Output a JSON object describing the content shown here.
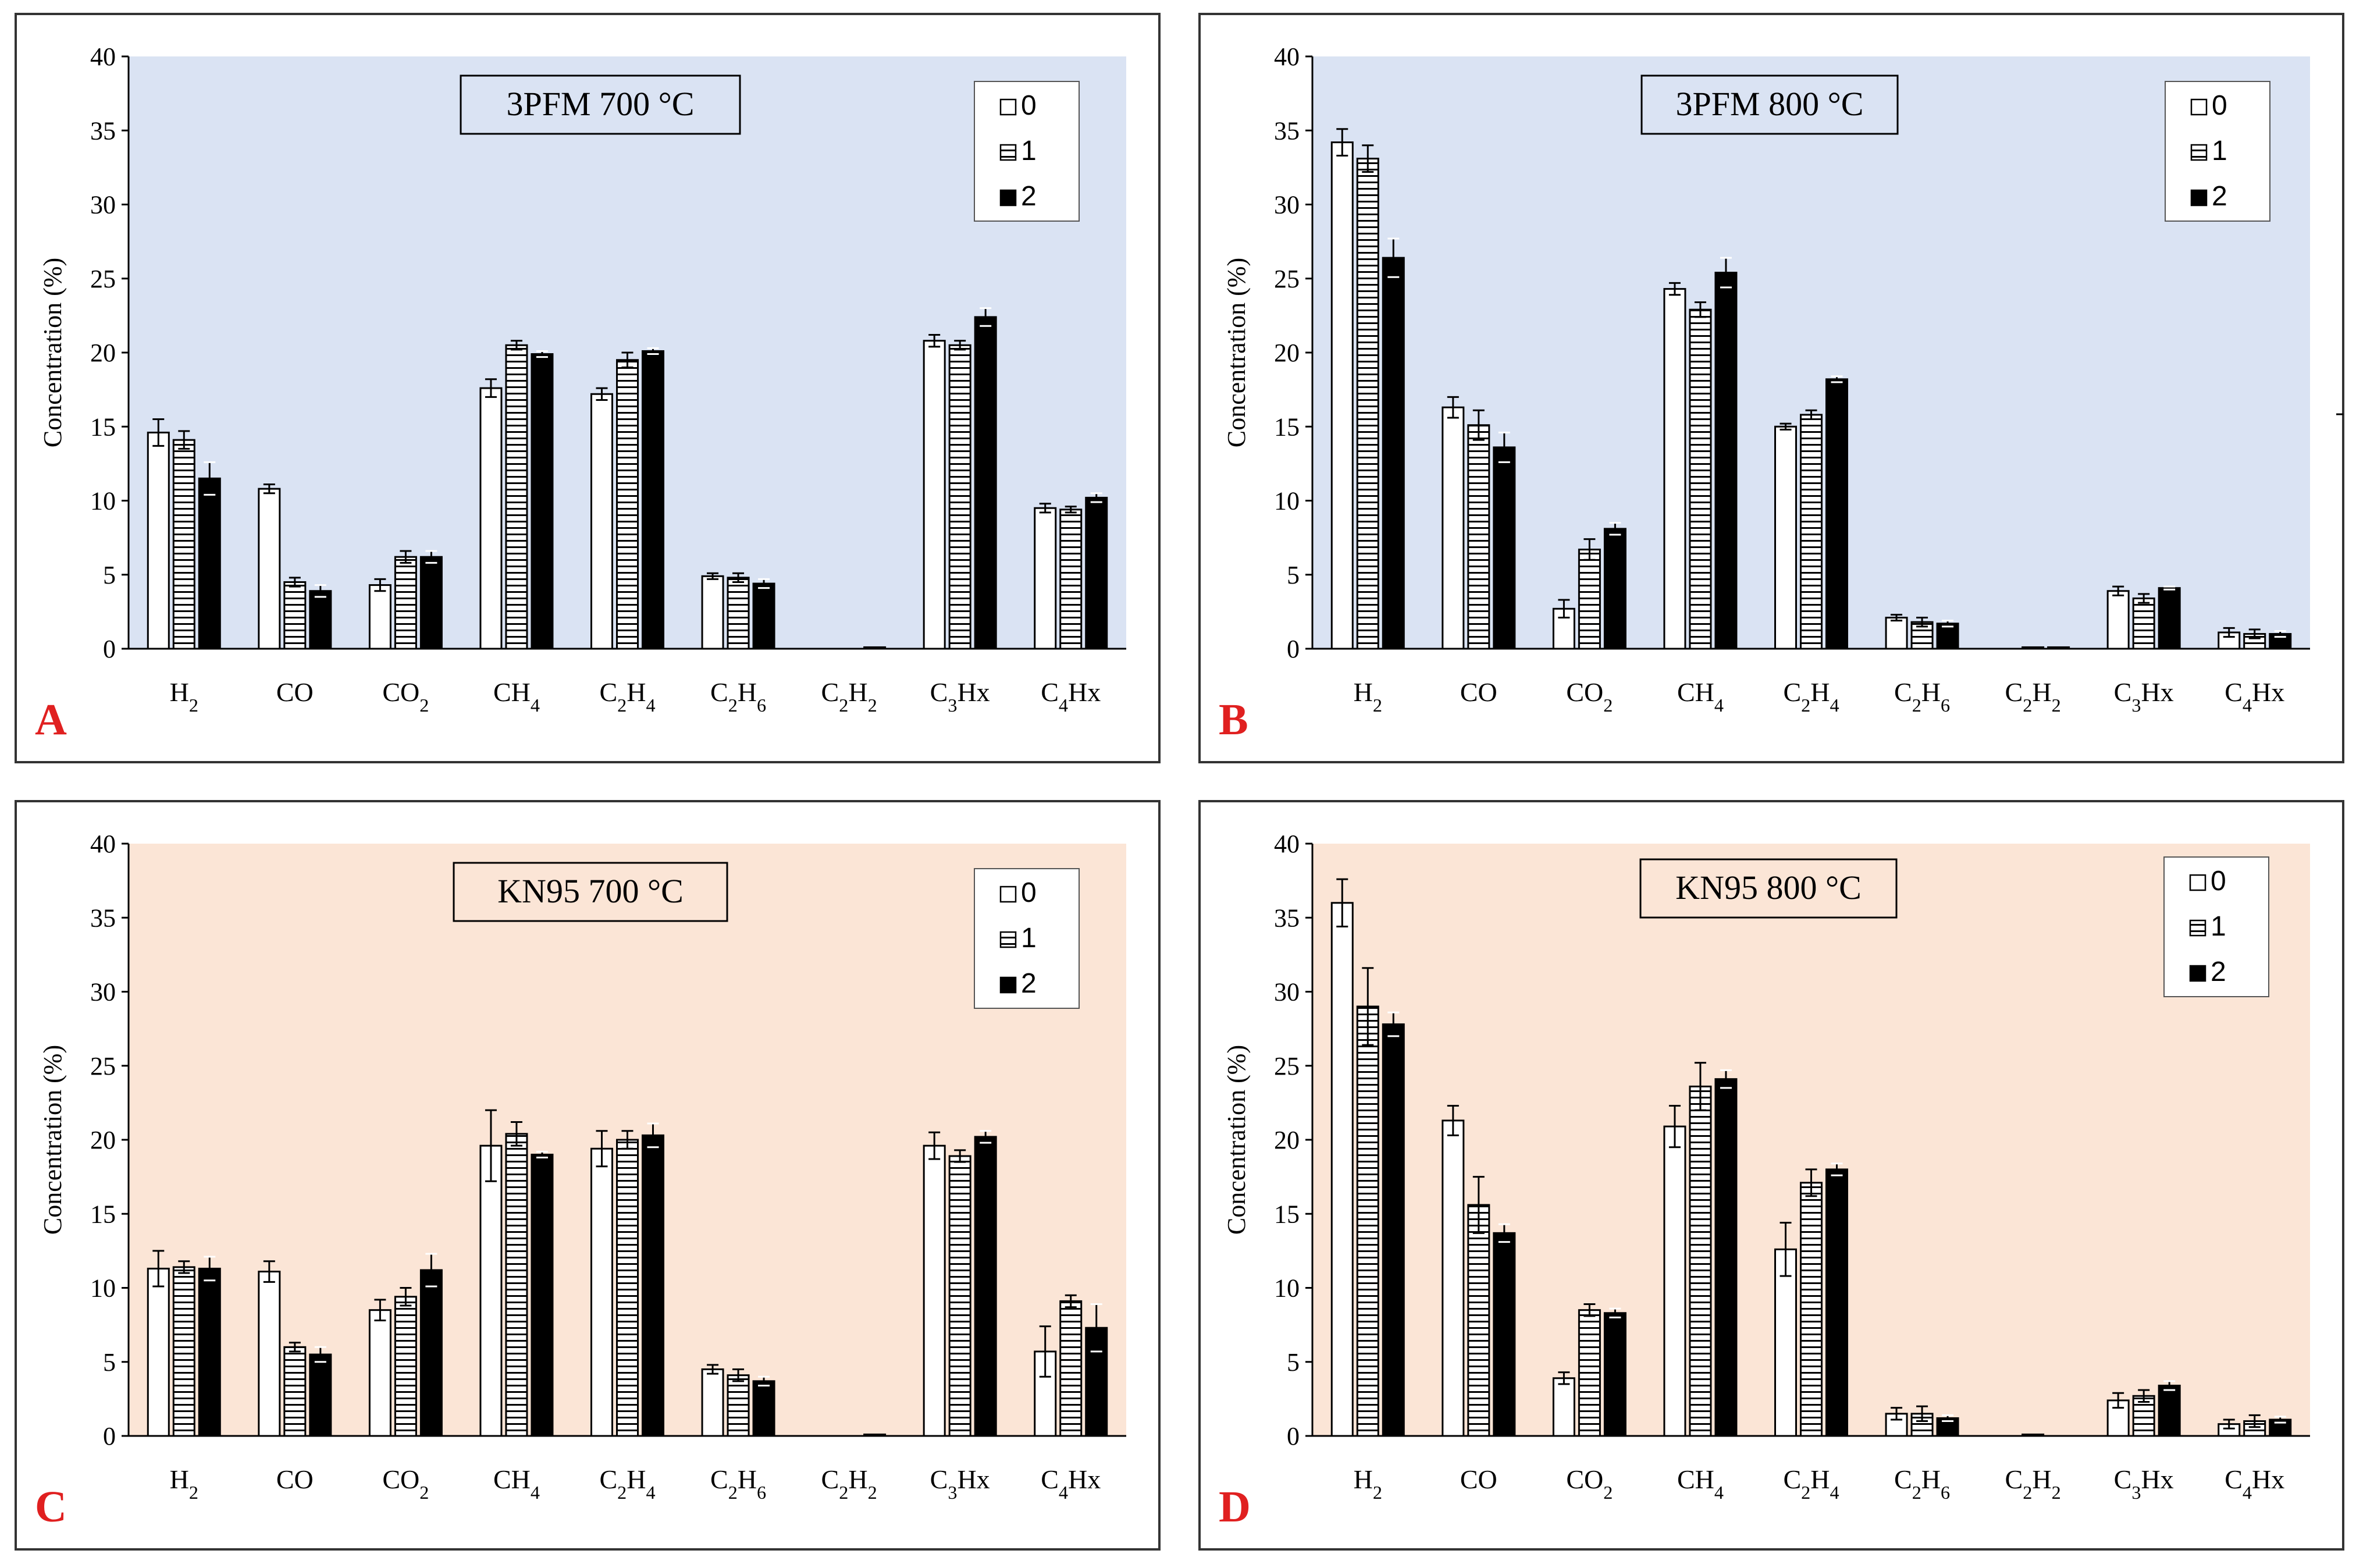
{
  "legend_labels": [
    "0",
    "1",
    "2"
  ],
  "colors": {
    "frame": "#333333",
    "plot_bg_top": "#dae3f3",
    "plot_bg_bottom": "#fbe5d6",
    "letter": "#e02020",
    "bar_fill_0": "#ffffff",
    "bar_fill_2": "#000000",
    "hatch": "#000000"
  },
  "chart_data": [
    {
      "panel_letter": "A",
      "type": "bar",
      "title": "3PFM  700 °C",
      "xlabel": "",
      "ylabel": "Concentration  (%)",
      "ylim": [
        0,
        40
      ],
      "yticks": [
        0,
        5,
        10,
        15,
        20,
        25,
        30,
        35,
        40
      ],
      "categories": [
        "H2",
        "CO",
        "CO2",
        "CH4",
        "C2H4",
        "C2H6",
        "C2H2",
        "C3Hx",
        "C4Hx"
      ],
      "series": [
        {
          "name": "0",
          "values": [
            14.6,
            10.8,
            4.3,
            17.6,
            17.2,
            4.9,
            0,
            20.8,
            9.5
          ],
          "errors": [
            0.9,
            0.3,
            0.4,
            0.6,
            0.4,
            0.2,
            0,
            0.4,
            0.3
          ]
        },
        {
          "name": "1",
          "values": [
            14.1,
            4.5,
            6.2,
            20.5,
            19.5,
            4.8,
            0,
            20.5,
            9.4
          ],
          "errors": [
            0.6,
            0.3,
            0.4,
            0.3,
            0.5,
            0.3,
            0,
            0.3,
            0.2
          ]
        },
        {
          "name": "2",
          "values": [
            11.5,
            3.9,
            6.2,
            19.9,
            20.1,
            4.4,
            0.1,
            22.4,
            10.2
          ],
          "errors": [
            1.1,
            0.4,
            0.4,
            0.2,
            0.2,
            0.3,
            0,
            0.6,
            0.3
          ]
        }
      ]
    },
    {
      "panel_letter": "B",
      "type": "bar",
      "title": "3PFM 800 °C",
      "xlabel": "",
      "ylabel": "Concentration  (%)",
      "ylim": [
        0,
        40
      ],
      "yticks": [
        0,
        5,
        10,
        15,
        20,
        25,
        30,
        35,
        40
      ],
      "categories": [
        "H2",
        "CO",
        "CO2",
        "CH4",
        "C2H4",
        "C2H6",
        "C2H2",
        "C3Hx",
        "C4Hx"
      ],
      "series": [
        {
          "name": "0",
          "values": [
            34.2,
            16.3,
            2.7,
            24.3,
            15.0,
            2.1,
            0,
            3.9,
            1.1
          ],
          "errors": [
            0.9,
            0.7,
            0.6,
            0.4,
            0.2,
            0.2,
            0,
            0.3,
            0.3
          ]
        },
        {
          "name": "1",
          "values": [
            33.1,
            15.1,
            6.7,
            22.9,
            15.8,
            1.8,
            0.1,
            3.4,
            1.0
          ],
          "errors": [
            0.9,
            1.0,
            0.7,
            0.5,
            0.3,
            0.3,
            0,
            0.3,
            0.3
          ]
        },
        {
          "name": "2",
          "values": [
            26.4,
            13.6,
            8.1,
            25.4,
            18.2,
            1.7,
            0.1,
            4.1,
            1.0
          ],
          "errors": [
            1.3,
            1.0,
            0.4,
            1.0,
            0.2,
            0.2,
            0,
            0.1,
            0.2
          ]
        }
      ]
    },
    {
      "panel_letter": "C",
      "type": "bar",
      "title": "KN95 700 °C",
      "xlabel": "",
      "ylabel": "Concentration  (%)",
      "ylim": [
        0,
        40
      ],
      "yticks": [
        0,
        5,
        10,
        15,
        20,
        25,
        30,
        35,
        40
      ],
      "categories": [
        "H2",
        "CO",
        "CO2",
        "CH4",
        "C2H4",
        "C2H6",
        "C2H2",
        "C3Hx",
        "C4Hx"
      ],
      "series": [
        {
          "name": "0",
          "values": [
            11.3,
            11.1,
            8.5,
            19.6,
            19.4,
            4.5,
            0,
            19.6,
            5.7
          ],
          "errors": [
            1.2,
            0.7,
            0.7,
            2.4,
            1.2,
            0.3,
            0,
            0.9,
            1.7
          ]
        },
        {
          "name": "1",
          "values": [
            11.4,
            6.0,
            9.4,
            20.4,
            20.0,
            4.1,
            0,
            18.9,
            9.1
          ],
          "errors": [
            0.4,
            0.3,
            0.6,
            0.8,
            0.6,
            0.4,
            0,
            0.4,
            0.4
          ]
        },
        {
          "name": "2",
          "values": [
            11.3,
            5.5,
            11.2,
            19.0,
            20.3,
            3.7,
            0.1,
            20.2,
            7.3
          ],
          "errors": [
            0.8,
            0.5,
            1.1,
            0.2,
            0.8,
            0.3,
            0,
            0.4,
            1.6
          ]
        }
      ]
    },
    {
      "panel_letter": "D",
      "type": "bar",
      "title": "KN95  800 °C",
      "xlabel": "",
      "ylabel": "Concentration  (%)",
      "ylim": [
        0,
        40
      ],
      "yticks": [
        0,
        5,
        10,
        15,
        20,
        25,
        30,
        35,
        40
      ],
      "categories": [
        "H2",
        "CO",
        "CO2",
        "CH4",
        "C2H4",
        "C2H6",
        "C2H2",
        "C3Hx",
        "C4Hx"
      ],
      "series": [
        {
          "name": "0",
          "values": [
            36.0,
            21.3,
            3.9,
            20.9,
            12.6,
            1.5,
            0,
            2.4,
            0.8
          ],
          "errors": [
            1.6,
            1.0,
            0.4,
            1.4,
            1.8,
            0.4,
            0,
            0.5,
            0.3
          ]
        },
        {
          "name": "1",
          "values": [
            29.0,
            15.6,
            8.5,
            23.6,
            17.1,
            1.5,
            0.1,
            2.7,
            1.0
          ],
          "errors": [
            2.6,
            1.9,
            0.4,
            1.6,
            0.9,
            0.5,
            0,
            0.4,
            0.4
          ]
        },
        {
          "name": "2",
          "values": [
            27.8,
            13.7,
            8.3,
            24.1,
            18.0,
            1.2,
            0,
            3.4,
            1.1
          ],
          "errors": [
            0.8,
            0.6,
            0.3,
            0.6,
            0.4,
            0.2,
            0,
            0.3,
            0.2
          ]
        }
      ]
    }
  ]
}
